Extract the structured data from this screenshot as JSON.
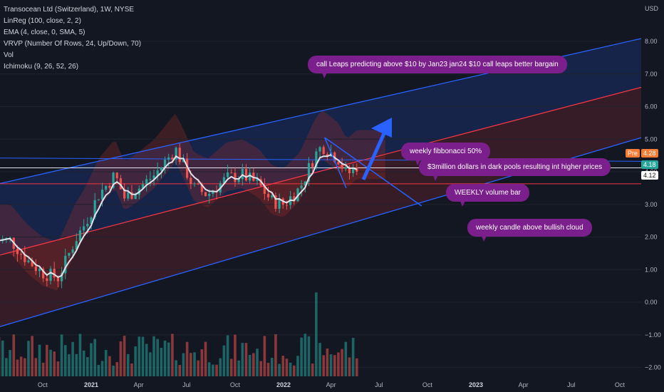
{
  "legend": {
    "title": "Transocean Ltd (Switzerland), 1W, NYSE",
    "lines": [
      "LinReg (100, close, 2, 2)",
      "EMA (4, close, 0, SMA, 5)",
      "VRVP (Number Of Rows, 24, Up/Down, 70)",
      "Vol",
      "Ichimoku (9, 26, 52, 26)"
    ]
  },
  "axis": {
    "currency": "USD",
    "y_ticks": [
      "8.00",
      "7.00",
      "6.00",
      "5.00",
      "4.00",
      "3.00",
      "2.00",
      "1.00",
      "0.00",
      "−1.00",
      "−2.00"
    ],
    "x_ticks": [
      "Oct",
      "2021",
      "Apr",
      "Jul",
      "Oct",
      "2022",
      "Apr",
      "Jul",
      "Oct",
      "2023",
      "Apr",
      "Jul",
      "Oct"
    ]
  },
  "price_tags": {
    "pre_label": "Pre",
    "pre_value": "4.28",
    "last_value": "4.18",
    "level_value": "4.12"
  },
  "callouts": {
    "leaps": "call Leaps predicting above $10 by Jan23  jan24 $10 call leaps better bargain",
    "fib": "weekly fibbonacci 50%",
    "darkpool": "$3million dollars in dark pools resulting int higher prices",
    "volume": "WEEKLY volume bar",
    "cloud": "weekly candle above bullish cloud"
  },
  "colors": {
    "background": "#131722",
    "up": "#26a69a",
    "down": "#ef5350",
    "channel": "#2962ff",
    "regression": "#f23645",
    "ema": "#e0e3eb",
    "callout": "#7b1f8c",
    "pre_tag": "#f57c35"
  },
  "chart_data": {
    "type": "candlestick",
    "interval": "1W",
    "ylim": [
      -2.25,
      8.55
    ],
    "price_path": [
      [
        "2020-08-01",
        1.9
      ],
      [
        "2020-09-01",
        1.3
      ],
      [
        "2020-10-01",
        0.9
      ],
      [
        "2020-10-30",
        0.75
      ],
      [
        "2020-11-15",
        1.3
      ],
      [
        "2020-12-01",
        1.9
      ],
      [
        "2020-12-20",
        2.4
      ],
      [
        "2021-01-15",
        3.3
      ],
      [
        "2021-02-15",
        3.9
      ],
      [
        "2021-03-05",
        3.2
      ],
      [
        "2021-04-01",
        3.5
      ],
      [
        "2021-05-01",
        3.9
      ],
      [
        "2021-06-10",
        4.7
      ],
      [
        "2021-06-25",
        4.2
      ],
      [
        "2021-07-15",
        3.5
      ],
      [
        "2021-08-10",
        3.3
      ],
      [
        "2021-09-15",
        3.8
      ],
      [
        "2021-10-15",
        3.9
      ],
      [
        "2021-11-15",
        3.6
      ],
      [
        "2021-12-10",
        3.1
      ],
      [
        "2022-01-01",
        3.0
      ],
      [
        "2022-02-01",
        3.5
      ],
      [
        "2022-03-01",
        4.5
      ],
      [
        "2022-03-15",
        4.8
      ],
      [
        "2022-04-15",
        4.4
      ],
      [
        "2022-05-01",
        3.9
      ],
      [
        "2022-05-20",
        4.18
      ]
    ],
    "linreg_upper": [
      [
        "2020-07-01",
        3.6
      ],
      [
        "2023-11-01",
        8.05
      ]
    ],
    "linreg_mid": [
      [
        "2020-07-01",
        1.4
      ],
      [
        "2023-11-01",
        6.55
      ]
    ],
    "linreg_lower": [
      [
        "2020-07-01",
        -0.8
      ],
      [
        "2023-11-01",
        5.0
      ]
    ],
    "horizontal_levels": [
      4.42,
      4.12,
      3.63
    ],
    "last_price": 4.18,
    "pre_market_price": 4.28
  }
}
